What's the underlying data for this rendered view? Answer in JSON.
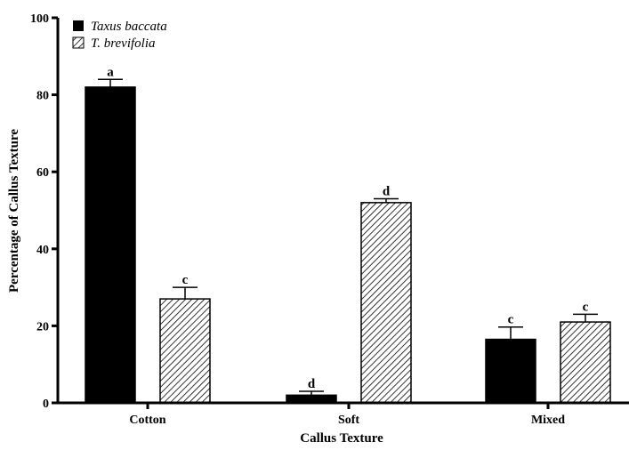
{
  "chart_data": {
    "type": "bar",
    "xlabel": "Callus Texture",
    "ylabel": "Percentage of Callus Texture",
    "ylim": [
      0,
      100
    ],
    "yticks": [
      "0",
      "20",
      "40",
      "60",
      "80",
      "100"
    ],
    "categories": [
      "Cotton",
      "Soft",
      "Mixed"
    ],
    "series": [
      {
        "name": "Taxus baccata",
        "values": [
          82,
          2,
          16.5
        ],
        "errors": [
          2,
          1,
          3.2
        ],
        "labels": [
          "a",
          "d",
          "c"
        ],
        "fill": "#000000",
        "pattern": "solid"
      },
      {
        "name": "T. brevifolia",
        "values": [
          27,
          52,
          21
        ],
        "errors": [
          3,
          1,
          2
        ],
        "labels": [
          "c",
          "d",
          "c"
        ],
        "fill": "#ffffff",
        "pattern": "hatch"
      }
    ],
    "legend": "top-left",
    "grid": false
  }
}
